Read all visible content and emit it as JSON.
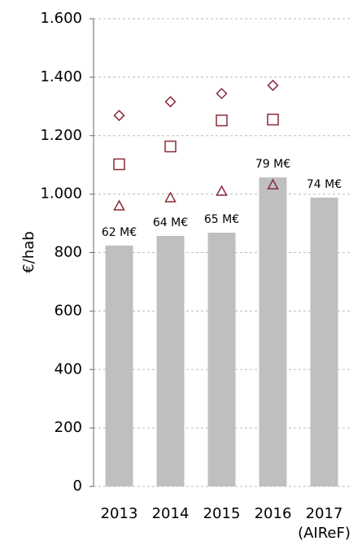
{
  "chart_data": {
    "type": "bar",
    "y_label": "€/hab",
    "categories": [
      "2013",
      "2014",
      "2015",
      "2016",
      "2017\n(AIReF)"
    ],
    "ylim": [
      0,
      1600
    ],
    "yticks": [
      0,
      200,
      400,
      600,
      800,
      {
        "value": 1000,
        "label": "1.000"
      },
      {
        "value": 1200,
        "label": "1.200"
      },
      {
        "value": 1400,
        "label": "1.400"
      },
      {
        "value": 1600,
        "label": "1.600"
      }
    ],
    "grid": true,
    "series": [
      {
        "type": "bar",
        "color": "#bfbfbf",
        "values": [
          824,
          857,
          868,
          1057,
          988
        ]
      },
      {
        "type": "scatter",
        "marker": "diamond",
        "color": "#8b2a3a",
        "values": [
          1269,
          1316,
          1344,
          1372,
          null
        ]
      },
      {
        "type": "scatter",
        "marker": "square",
        "color": "#8b2a3a",
        "values": [
          1102,
          1163,
          1252,
          1255,
          null
        ]
      },
      {
        "type": "scatter",
        "marker": "triangle",
        "color": "#8b2a3a",
        "values": [
          960,
          988,
          1010,
          1032,
          null
        ]
      }
    ],
    "bar_labels": [
      "62 M€",
      "64 M€",
      "65 M€",
      "79 M€",
      "74 M€"
    ]
  }
}
